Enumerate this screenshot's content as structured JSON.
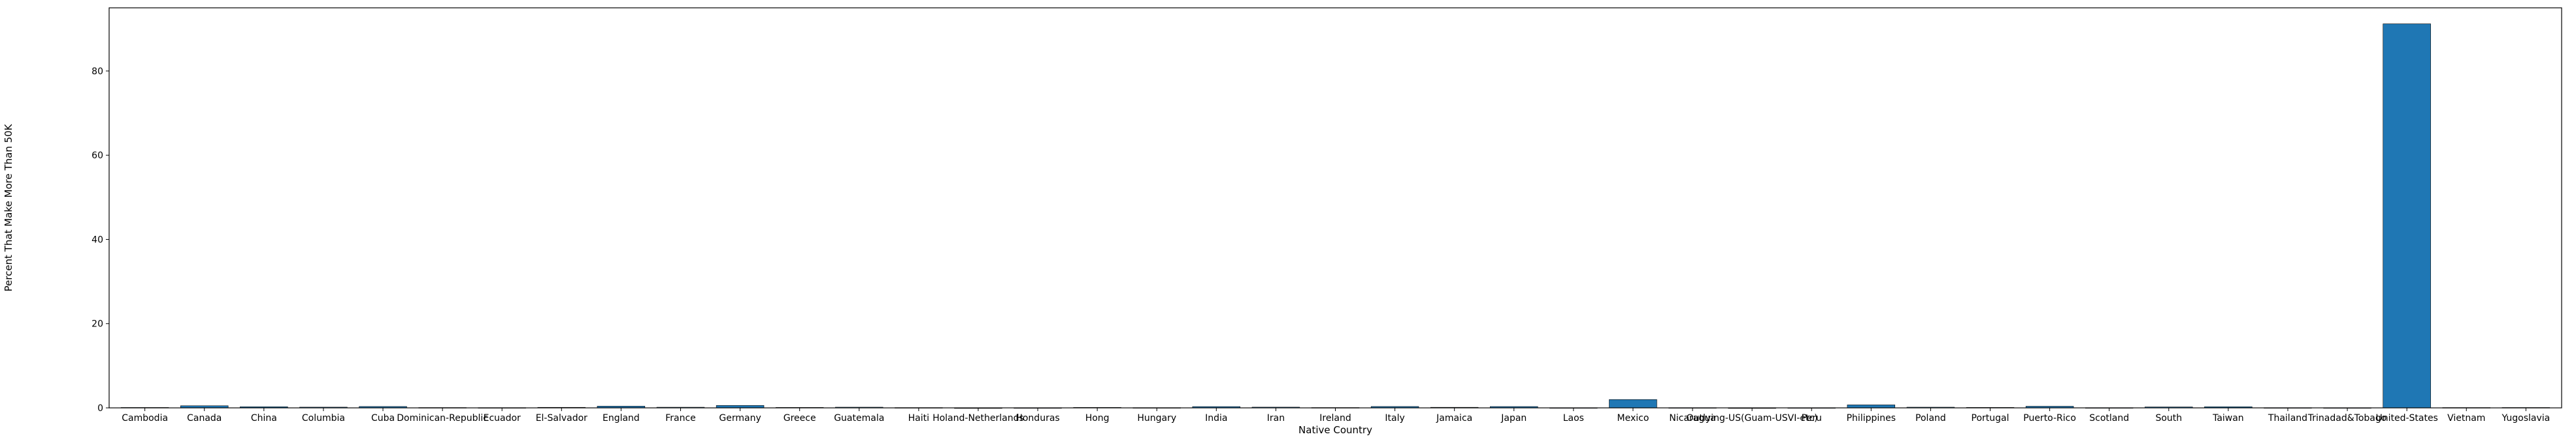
{
  "chart_data": {
    "type": "bar",
    "title": "",
    "xlabel": "Native Country",
    "ylabel": "Percent That Make More Than 50K",
    "ylim": [
      0,
      95
    ],
    "yticks": [
      0,
      20,
      40,
      60,
      80
    ],
    "grid": false,
    "legend": "none",
    "bar_color": "#1f77b4",
    "categories": [
      "Cambodia",
      "Canada",
      "China",
      "Columbia",
      "Cuba",
      "Dominican-Republic",
      "Ecuador",
      "El-Salvador",
      "England",
      "France",
      "Germany",
      "Greece",
      "Guatemala",
      "Haiti",
      "Holand-Netherlands",
      "Honduras",
      "Hong",
      "Hungary",
      "India",
      "Iran",
      "Ireland",
      "Italy",
      "Jamaica",
      "Japan",
      "Laos",
      "Mexico",
      "Nicaragua",
      "Outlying-US(Guam-USVI-etc)",
      "Peru",
      "Philippines",
      "Poland",
      "Portugal",
      "Puerto-Rico",
      "Scotland",
      "South",
      "Taiwan",
      "Thailand",
      "Trinadad&Tobago",
      "United-States",
      "Vietnam",
      "Yugoslavia"
    ],
    "values": [
      0.09,
      0.5,
      0.26,
      0.17,
      0.32,
      0.07,
      0.05,
      0.12,
      0.4,
      0.15,
      0.57,
      0.1,
      0.16,
      0.06,
      0.0,
      0.02,
      0.1,
      0.05,
      0.3,
      0.17,
      0.07,
      0.32,
      0.13,
      0.31,
      0.03,
      1.98,
      0.04,
      0.0,
      0.03,
      0.71,
      0.16,
      0.1,
      0.38,
      0.04,
      0.22,
      0.26,
      0.04,
      0.03,
      91.2,
      0.07,
      0.08
    ]
  }
}
